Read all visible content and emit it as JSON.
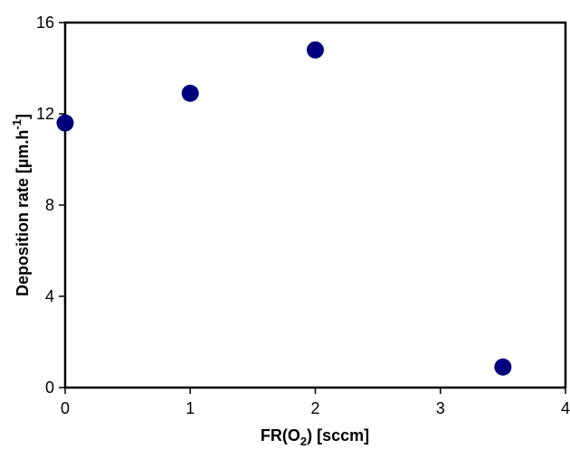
{
  "chart_data": {
    "type": "scatter",
    "xlim": [
      0,
      4
    ],
    "ylim": [
      0,
      16
    ],
    "x_ticks": [
      0,
      1,
      2,
      3,
      4
    ],
    "y_ticks": [
      0,
      4,
      8,
      12,
      16
    ],
    "x_tick_labels": [
      "0",
      "1",
      "2",
      "3",
      "4"
    ],
    "y_tick_labels": [
      "0",
      "4",
      "8",
      "12",
      "16"
    ],
    "xlabel": {
      "prefix": "FR(O",
      "subscript": "2",
      "suffix": ") [sccm]"
    },
    "ylabel": {
      "prefix": "Deposition rate [µm.h",
      "superscript": "-1",
      "suffix": "]"
    },
    "grid": false,
    "legend": "none",
    "series": [
      {
        "x": [
          0,
          1,
          2,
          3.5
        ],
        "y": [
          11.6,
          12.9,
          14.8,
          0.9
        ],
        "color": "#00007f"
      }
    ]
  }
}
